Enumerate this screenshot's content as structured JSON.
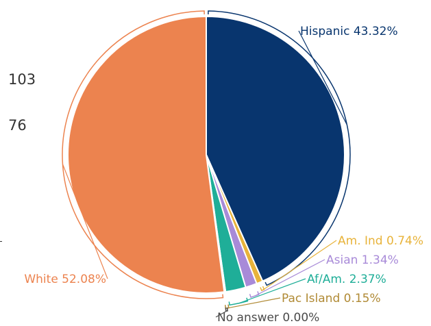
{
  "side_numbers": [
    "103",
    "76"
  ],
  "chart_data": {
    "type": "pie",
    "start_angle_deg": 0,
    "direction": "clockwise",
    "slices": [
      {
        "label": "Hispanic 43.32%",
        "name": "Hispanic",
        "value": 43.32,
        "color": "#08356e"
      },
      {
        "label": "Am. Ind 0.74%",
        "name": "Am. Ind",
        "value": 0.74,
        "color": "#e8b33a"
      },
      {
        "label": "Asian 1.34%",
        "name": "Asian",
        "value": 1.34,
        "color": "#a88ad8"
      },
      {
        "label": "Af/Am. 2.37%",
        "name": "Af/Am.",
        "value": 2.37,
        "color": "#1fae98"
      },
      {
        "label": "Pac Island 0.15%",
        "name": "Pac Island",
        "value": 0.15,
        "color": "#b08a35"
      },
      {
        "label": "No answer 0.00%",
        "name": "No answer",
        "value": 0.0,
        "color": "#4a4a4a"
      },
      {
        "label": "White 52.08%",
        "name": "White",
        "value": 52.08,
        "color": "#ec834f"
      }
    ]
  }
}
